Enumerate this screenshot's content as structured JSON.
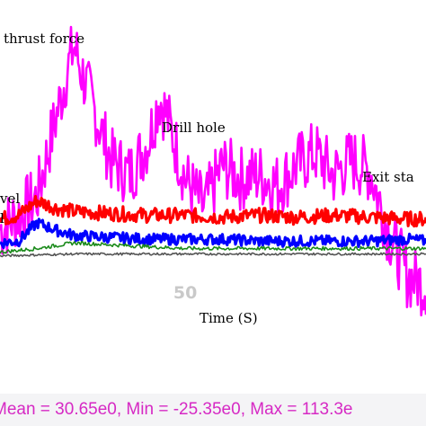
{
  "chart_data": {
    "type": "line",
    "xlabel": "Time (S)",
    "x_ticks": [
      {
        "value": 50,
        "label": "50"
      }
    ],
    "xlim": [
      0,
      115
    ],
    "ylim": [
      -30,
      125
    ],
    "grid": false,
    "legend": "none",
    "annotations": [
      {
        "text": "thrust force",
        "x": 2,
        "y": 123
      },
      {
        "text": "Drill hole",
        "x": 41,
        "y": 82
      },
      {
        "text": "Exit sta",
        "x": 93,
        "y": 58
      },
      {
        "text": "vel",
        "x": 0,
        "y": 45
      },
      {
        "text": "l",
        "x": 0,
        "y": 32
      }
    ],
    "series": [
      {
        "color": "#ff00ff",
        "x": [
          0,
          5,
          10,
          15,
          18,
          20,
          22,
          25,
          30,
          35,
          40,
          43,
          45,
          50,
          55,
          60,
          65,
          70,
          75,
          80,
          85,
          90,
          95,
          100,
          105,
          110,
          115
        ],
        "y": [
          10,
          18,
          28,
          70,
          95,
          110,
          96,
          78,
          48,
          40,
          58,
          82,
          72,
          38,
          22,
          45,
          38,
          40,
          34,
          45,
          52,
          40,
          48,
          42,
          8,
          -15,
          -20
        ],
        "amplitude": 18
      },
      {
        "color": "#ff0000",
        "x": [
          0,
          5,
          10,
          15,
          20,
          30,
          40,
          50,
          60,
          70,
          80,
          90,
          100,
          110,
          115
        ],
        "y": [
          16,
          18,
          26,
          22,
          20,
          19,
          18,
          18,
          17,
          18,
          17,
          18,
          17,
          16,
          16
        ],
        "amplitude": 4
      },
      {
        "color": "#0000ff",
        "x": [
          0,
          5,
          10,
          15,
          20,
          30,
          40,
          50,
          60,
          70,
          80,
          90,
          100,
          110,
          115
        ],
        "y": [
          3,
          4,
          14,
          10,
          7,
          6,
          5,
          5,
          5,
          4,
          4,
          4,
          4,
          5,
          4
        ],
        "amplitude": 3
      },
      {
        "color": "#1a8a1a",
        "x": [
          0,
          10,
          20,
          30,
          40,
          50,
          60,
          70,
          80,
          90,
          100,
          110,
          115
        ],
        "y": [
          -2,
          0,
          3,
          2,
          1,
          0,
          0,
          0,
          0,
          0,
          0,
          0,
          0
        ],
        "amplitude": 1
      },
      {
        "color": "#555555",
        "x": [
          0,
          20,
          40,
          60,
          80,
          100,
          115
        ],
        "y": [
          -4,
          -3,
          -3,
          -3,
          -3,
          -3,
          -3
        ],
        "amplitude": 0.6
      }
    ]
  },
  "stats": {
    "text": "Mean = 30.65e0, Min = -25.35e0, Max = 113.3e"
  }
}
